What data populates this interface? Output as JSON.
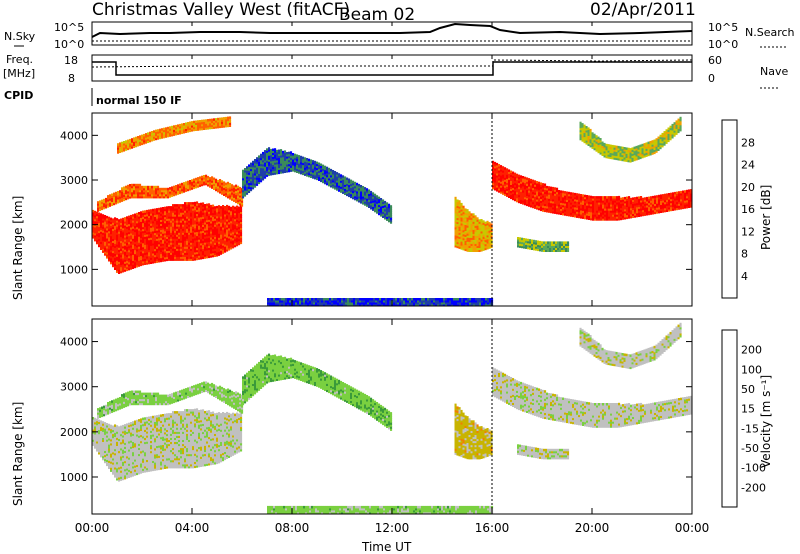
{
  "header": {
    "title": "Christmas Valley West (fitACF)",
    "beam": "Beam 02",
    "date": "02/Apr/2011"
  },
  "top_strip": {
    "nsky_label": "N.Sky",
    "nsearch_label": "N.Search",
    "noise_ticks": [
      "10^5",
      "10^0"
    ],
    "freq_label": "Freq.",
    "freq_unit": "[MHz]",
    "freq_ticks": [
      "18",
      "8"
    ],
    "nave_label": "Nave",
    "nave_ticks": [
      "60",
      "0"
    ],
    "cpid_label": "CPID",
    "cpid_value": "normal 150 IF"
  },
  "x_axis": {
    "label": "Time UT",
    "ticks": [
      "00:00",
      "04:00",
      "08:00",
      "12:00",
      "16:00",
      "20:00",
      "00:00"
    ]
  },
  "power_panel": {
    "ylabel": "Slant Range [km]",
    "yticks": [
      "4000",
      "3000",
      "2000",
      "1000"
    ],
    "colorbar_label": "Power [dB]",
    "colorbar_ticks": [
      "28",
      "24",
      "20",
      "16",
      "12",
      "8",
      "4"
    ]
  },
  "velocity_panel": {
    "ylabel": "Slant Range [km]",
    "yticks": [
      "4000",
      "3000",
      "2000",
      "1000"
    ],
    "colorbar_label": "Velocity [m s⁻¹]",
    "colorbar_ticks": [
      "200",
      "100",
      "50",
      "15",
      "-15",
      "-50",
      "-100",
      "-200"
    ]
  },
  "colors": {
    "power_scale": [
      "#0000ff",
      "#1f3fa8",
      "#3a8a5a",
      "#5aa85a",
      "#c8c800",
      "#f0a000",
      "#ff6000",
      "#ff2000",
      "#ff0000"
    ],
    "velocity_scale": [
      "#2020a0",
      "#3a6ac8",
      "#3a9a3a",
      "#7ad040",
      "#c0c0c0",
      "#c8b400",
      "#f08000",
      "#ff5000",
      "#ff0000"
    ]
  },
  "chart_data": [
    {
      "type": "heatmap",
      "title": "Power [dB]",
      "xlabel": "Time UT",
      "ylabel": "Slant Range [km]",
      "xlim": [
        0,
        24
      ],
      "ylim": [
        180,
        4500
      ],
      "zlim": [
        0,
        30
      ],
      "bands": [
        {
          "t": [
            0.0,
            1.0,
            2.0,
            3.0,
            4.0,
            5.0,
            6.0
          ],
          "r_lo": [
            1700,
            900,
            1100,
            1200,
            1200,
            1300,
            1600
          ],
          "r_hi": [
            2300,
            2100,
            2300,
            2400,
            2500,
            2400,
            2400
          ],
          "power": 26
        },
        {
          "t": [
            0.2,
            1.5,
            3.0,
            4.5,
            6.0
          ],
          "r_lo": [
            2300,
            2600,
            2600,
            2900,
            2400
          ],
          "r_hi": [
            2500,
            2900,
            2800,
            3100,
            2800
          ],
          "power": 22
        },
        {
          "t": [
            1.0,
            2.5,
            4.0,
            5.5
          ],
          "r_lo": [
            3600,
            3900,
            4100,
            4200
          ],
          "r_hi": [
            3800,
            4100,
            4300,
            4400
          ],
          "power": 20
        },
        {
          "t": [
            6.0,
            7.0,
            8.0,
            9.0,
            10.0,
            11.0,
            12.0
          ],
          "r_lo": [
            2600,
            3100,
            3200,
            3000,
            2700,
            2400,
            2000
          ],
          "r_hi": [
            3200,
            3700,
            3600,
            3400,
            3100,
            2800,
            2400
          ],
          "power": 6
        },
        {
          "t": [
            14.5,
            15.0,
            15.5,
            16.0
          ],
          "r_lo": [
            1500,
            1400,
            1400,
            1500
          ],
          "r_hi": [
            2600,
            2300,
            2100,
            2000
          ],
          "power": 18
        },
        {
          "t": [
            16.0,
            17.0,
            18.0,
            19.0,
            20.0,
            21.0,
            22.0,
            23.0,
            24.0
          ],
          "r_lo": [
            2800,
            2500,
            2300,
            2200,
            2100,
            2100,
            2200,
            2300,
            2400
          ],
          "r_hi": [
            3400,
            3100,
            2900,
            2700,
            2600,
            2600,
            2600,
            2700,
            2800
          ],
          "power": 26
        },
        {
          "t": [
            17.0,
            18.0,
            19.0
          ],
          "r_lo": [
            1500,
            1400,
            1400
          ],
          "r_hi": [
            1700,
            1600,
            1600
          ],
          "power": 12
        },
        {
          "t": [
            19.5,
            20.5,
            21.5,
            22.5,
            23.5
          ],
          "r_lo": [
            3900,
            3500,
            3400,
            3600,
            4100
          ],
          "r_hi": [
            4300,
            3800,
            3700,
            3900,
            4400
          ],
          "power": 14
        },
        {
          "t": [
            7.0,
            10.0,
            13.0,
            16.0
          ],
          "r_lo": [
            180,
            180,
            180,
            180
          ],
          "r_hi": [
            320,
            320,
            320,
            320
          ],
          "power": 4
        }
      ]
    },
    {
      "type": "heatmap",
      "title": "Velocity [m s⁻¹]",
      "xlabel": "Time UT",
      "ylabel": "Slant Range [km]",
      "xlim": [
        0,
        24
      ],
      "ylim": [
        180,
        4500
      ],
      "zlim": [
        -200,
        200
      ],
      "bands": [
        {
          "t": [
            0.0,
            1.0,
            2.0,
            3.0,
            4.0,
            5.0,
            6.0
          ],
          "r_lo": [
            1700,
            900,
            1100,
            1200,
            1200,
            1300,
            1600
          ],
          "r_hi": [
            2300,
            2100,
            2300,
            2400,
            2500,
            2400,
            2400
          ],
          "velocity": 0
        },
        {
          "t": [
            0.2,
            1.5,
            3.0,
            4.5,
            6.0
          ],
          "r_lo": [
            2300,
            2600,
            2600,
            2900,
            2400
          ],
          "r_hi": [
            2500,
            2900,
            2800,
            3100,
            2800
          ],
          "velocity": -40
        },
        {
          "t": [
            6.0,
            7.0,
            8.0,
            9.0,
            10.0,
            11.0,
            12.0
          ],
          "r_lo": [
            2600,
            3100,
            3200,
            3000,
            2700,
            2400,
            2000
          ],
          "r_hi": [
            3200,
            3700,
            3600,
            3400,
            3100,
            2800,
            2400
          ],
          "velocity": -50
        },
        {
          "t": [
            14.5,
            15.0,
            15.5,
            16.0
          ],
          "r_lo": [
            1500,
            1400,
            1400,
            1500
          ],
          "r_hi": [
            2600,
            2300,
            2100,
            2000
          ],
          "velocity": 40
        },
        {
          "t": [
            16.0,
            17.0,
            18.0,
            19.0,
            20.0,
            21.0,
            22.0,
            23.0,
            24.0
          ],
          "r_lo": [
            2800,
            2500,
            2300,
            2200,
            2100,
            2100,
            2200,
            2300,
            2400
          ],
          "r_hi": [
            3400,
            3100,
            2900,
            2700,
            2600,
            2600,
            2600,
            2700,
            2800
          ],
          "velocity": 0
        },
        {
          "t": [
            17.0,
            18.0,
            19.0
          ],
          "r_lo": [
            1500,
            1400,
            1400
          ],
          "r_hi": [
            1700,
            1600,
            1600
          ],
          "velocity": 0
        },
        {
          "t": [
            19.5,
            20.5,
            21.5,
            22.5,
            23.5
          ],
          "r_lo": [
            3900,
            3500,
            3400,
            3600,
            4100
          ],
          "r_hi": [
            4300,
            3800,
            3700,
            3900,
            4400
          ],
          "velocity": 0
        },
        {
          "t": [
            7.0,
            10.0,
            13.0,
            16.0
          ],
          "r_lo": [
            180,
            180,
            180,
            180
          ],
          "r_hi": [
            320,
            320,
            320,
            320
          ],
          "velocity": -40
        }
      ]
    }
  ]
}
